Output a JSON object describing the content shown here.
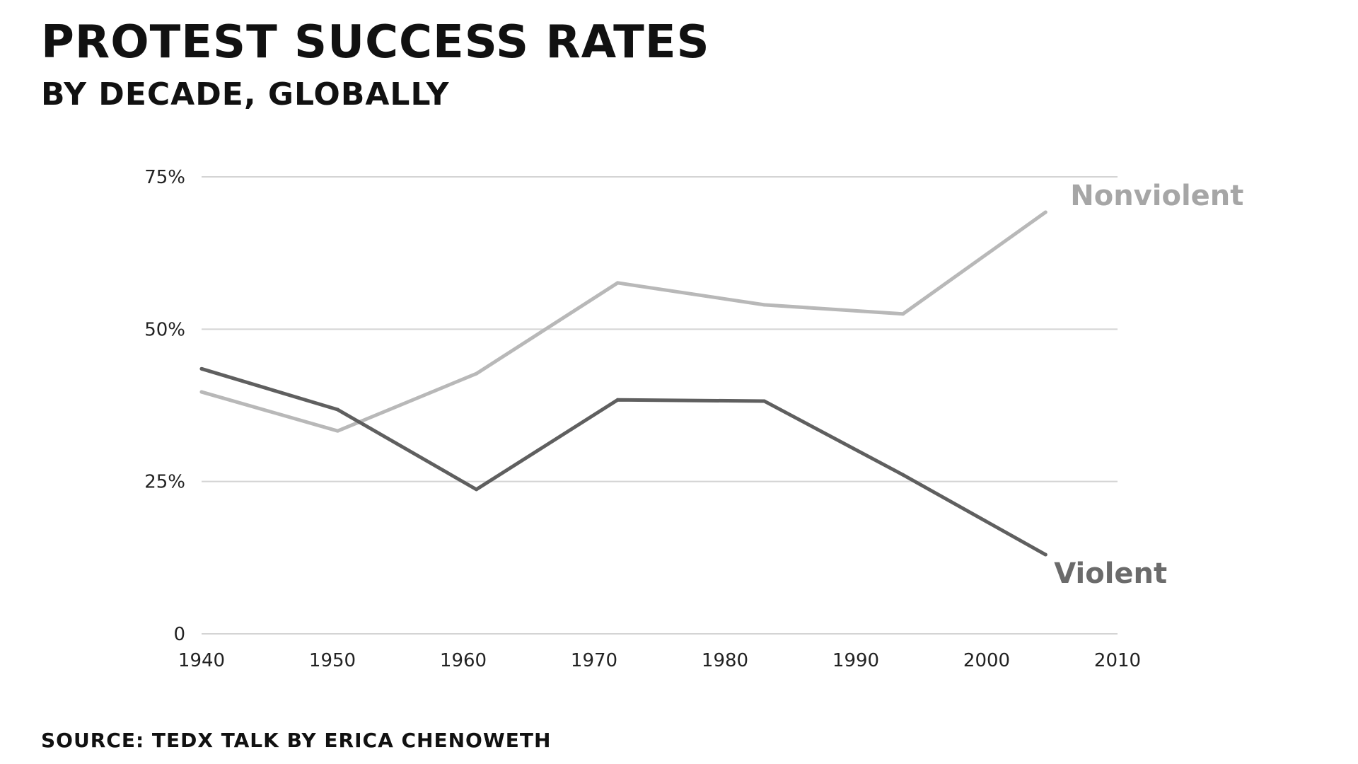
{
  "header": {
    "title": "PROTEST SUCCESS RATES",
    "subtitle": "BY DECADE, GLOBALLY"
  },
  "footer": {
    "source": "SOURCE: TEDX TALK BY ERICA CHENOWETH"
  },
  "chart_data": {
    "type": "line",
    "title": "PROTEST SUCCESS RATES",
    "subtitle": "BY DECADE, GLOBALLY",
    "xlabel": "",
    "ylabel": "",
    "xlim": [
      1940,
      2010
    ],
    "ylim": [
      0,
      75
    ],
    "x_ticks": [
      1940,
      1950,
      1960,
      1970,
      1980,
      1990,
      2000,
      2010
    ],
    "x_tick_labels": [
      "1940",
      "1950",
      "1960",
      "1970",
      "1980",
      "1990",
      "2000",
      "2010"
    ],
    "y_ticks": [
      0,
      25,
      50,
      75
    ],
    "y_tick_labels": [
      "0",
      "25%",
      "50%",
      "75%"
    ],
    "grid": true,
    "legend": "direct labels at line ends",
    "series": [
      {
        "name": "Nonviolent",
        "color": "#b8b8b8",
        "x": [
          1940,
          1950.4,
          1961,
          1971.8,
          1983,
          1993.6,
          2004.5
        ],
        "values": [
          39.7,
          33.3,
          42.7,
          57.6,
          54.0,
          52.5,
          69.2
        ]
      },
      {
        "name": "Violent",
        "color": "#5f5f5f",
        "x": [
          1940,
          1950.4,
          1961,
          1971.8,
          1983,
          1993.6,
          2004.5
        ],
        "values": [
          43.5,
          36.8,
          23.7,
          38.4,
          38.2,
          26.1,
          13.0
        ]
      }
    ]
  }
}
